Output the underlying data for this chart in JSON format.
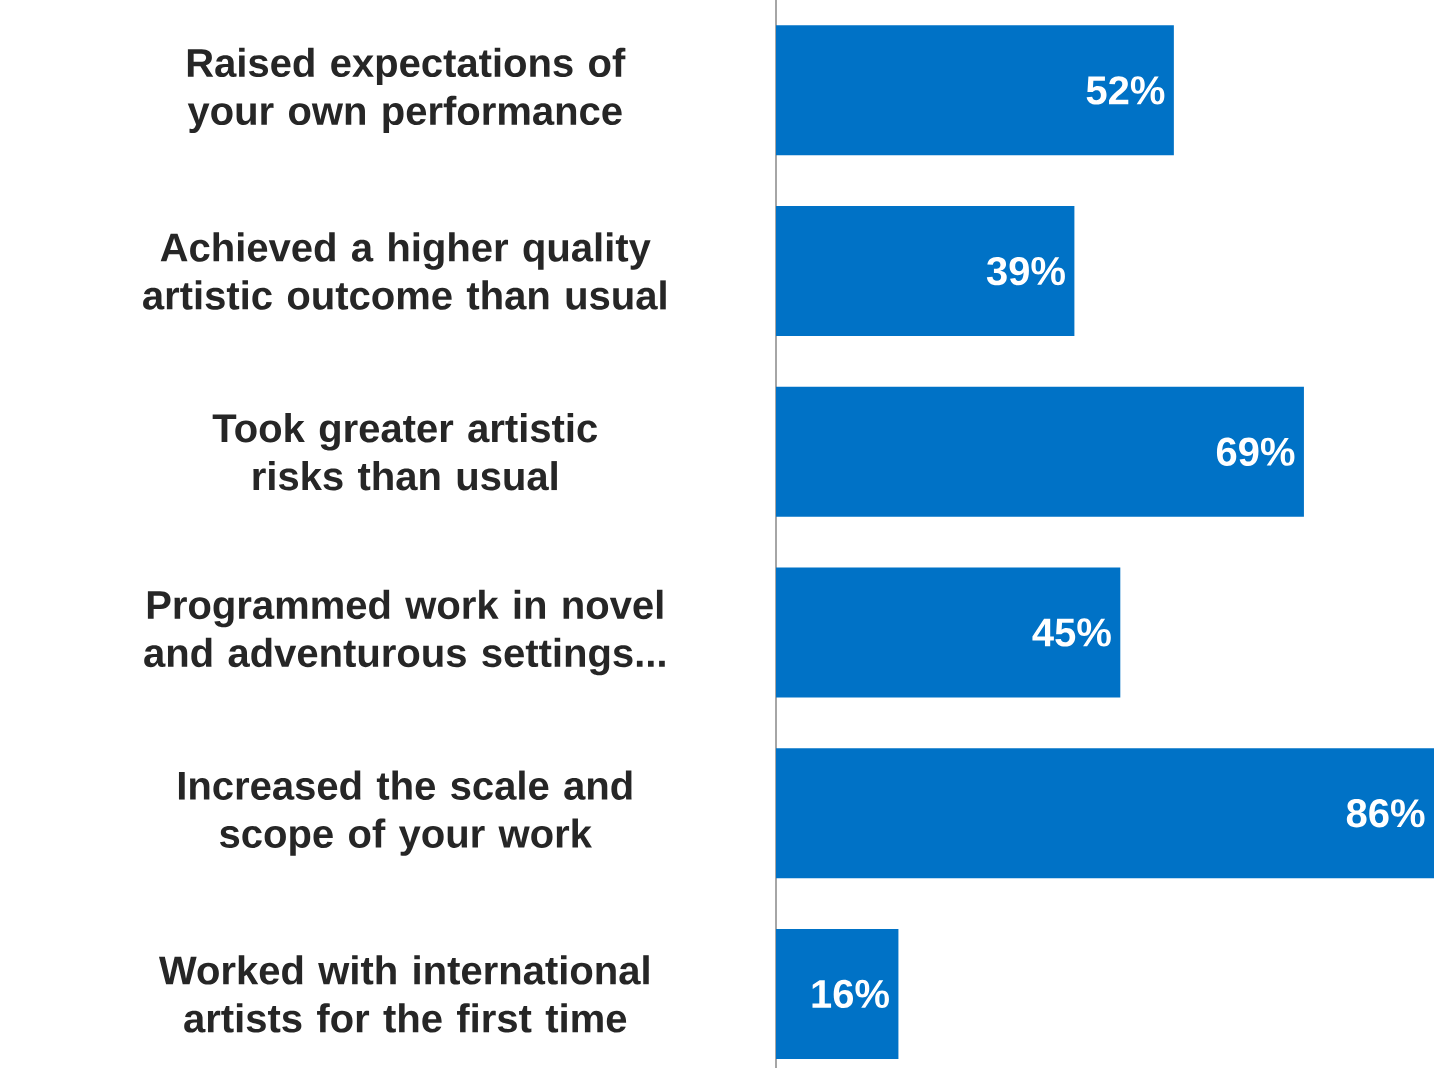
{
  "chart_data": {
    "type": "bar",
    "orientation": "horizontal",
    "categories": [
      "Raised expectations of your own performance",
      "Achieved a higher quality artistic outcome than usual",
      "Took greater artistic risks than usual",
      "Programmed work in novel and adventurous settings...",
      "Increased the scale and scope of your work",
      "Worked with international artists for the first time"
    ],
    "values": [
      52,
      39,
      69,
      45,
      86,
      16
    ],
    "value_labels": [
      "52%",
      "39%",
      "69%",
      "45%",
      "86%",
      "16%"
    ],
    "color": "#0072c6",
    "tick_labels": "y"
  }
}
